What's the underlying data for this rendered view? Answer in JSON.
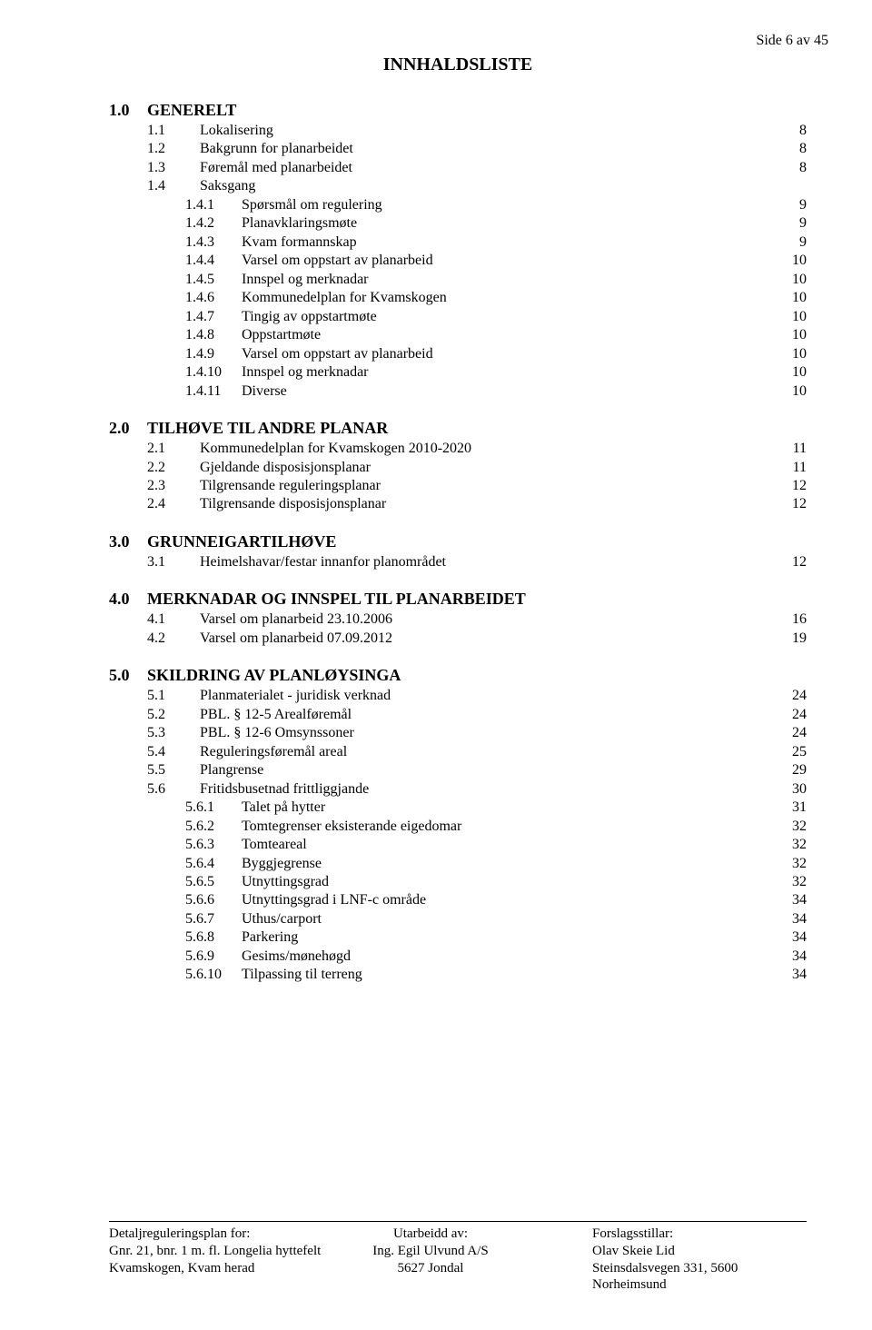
{
  "page_marker": "Side 6 av 45",
  "doc_title": "INNHALDSLISTE",
  "colors": {
    "text": "#000000",
    "background": "#ffffff",
    "rule": "#000000"
  },
  "typography": {
    "family": "Times New Roman",
    "title_size_pt": 15,
    "section_size_pt": 13,
    "body_size_pt": 12,
    "footer_size_pt": 11
  },
  "sections": [
    {
      "num": "1.0",
      "title": "GENERELT",
      "entries": [
        {
          "level": 1,
          "num": "1.1",
          "label": "Lokalisering",
          "page": "8"
        },
        {
          "level": 1,
          "num": "1.2",
          "label": "Bakgrunn for planarbeidet",
          "page": "8"
        },
        {
          "level": 1,
          "num": "1.3",
          "label": "Føremål med planarbeidet",
          "page": "8"
        },
        {
          "level": 1,
          "num": "1.4",
          "label": "Saksgang",
          "page": ""
        },
        {
          "level": 2,
          "num": "1.4.1",
          "label": "Spørsmål om regulering",
          "page": "9"
        },
        {
          "level": 2,
          "num": "1.4.2",
          "label": "Planavklaringsmøte",
          "page": "9"
        },
        {
          "level": 2,
          "num": "1.4.3",
          "label": "Kvam formannskap",
          "page": "9"
        },
        {
          "level": 2,
          "num": "1.4.4",
          "label": "Varsel om oppstart av planarbeid",
          "page": "10"
        },
        {
          "level": 2,
          "num": "1.4.5",
          "label": "Innspel og merknadar",
          "page": "10"
        },
        {
          "level": 2,
          "num": "1.4.6",
          "label": "Kommunedelplan for Kvamskogen",
          "page": "10"
        },
        {
          "level": 2,
          "num": "1.4.7",
          "label": "Tingig av oppstartmøte",
          "page": "10"
        },
        {
          "level": 2,
          "num": "1.4.8",
          "label": "Oppstartmøte",
          "page": "10"
        },
        {
          "level": 2,
          "num": "1.4.9",
          "label": "Varsel om oppstart av planarbeid",
          "page": "10"
        },
        {
          "level": 2,
          "num": "1.4.10",
          "label": "Innspel og merknadar",
          "page": "10"
        },
        {
          "level": 2,
          "num": "1.4.11",
          "label": "Diverse",
          "page": "10"
        }
      ]
    },
    {
      "num": "2.0",
      "title": "TILHØVE TIL ANDRE PLANAR",
      "entries": [
        {
          "level": 1,
          "num": "2.1",
          "label": "Kommunedelplan for Kvamskogen 2010-2020",
          "page": "11"
        },
        {
          "level": 1,
          "num": "2.2",
          "label": "Gjeldande disposisjonsplanar",
          "page": "11"
        },
        {
          "level": 1,
          "num": "2.3",
          "label": "Tilgrensande reguleringsplanar",
          "page": "12"
        },
        {
          "level": 1,
          "num": "2.4",
          "label": "Tilgrensande disposisjonsplanar",
          "page": "12"
        }
      ]
    },
    {
      "num": "3.0",
      "title": "GRUNNEIGARTILHØVE",
      "entries": [
        {
          "level": 1,
          "num": "3.1",
          "label": "Heimelshavar/festar innanfor planområdet",
          "page": "12"
        }
      ]
    },
    {
      "num": "4.0",
      "title": "MERKNADAR OG INNSPEL TIL PLANARBEIDET",
      "entries": [
        {
          "level": 1,
          "num": "4.1",
          "label": "Varsel om planarbeid 23.10.2006",
          "page": "16"
        },
        {
          "level": 1,
          "num": "4.2",
          "label": "Varsel om planarbeid 07.09.2012",
          "page": "19"
        }
      ]
    },
    {
      "num": "5.0",
      "title": "SKILDRING AV PLANLØYSINGA",
      "entries": [
        {
          "level": 1,
          "num": "5.1",
          "label": "Planmaterialet - juridisk verknad",
          "page": "24"
        },
        {
          "level": 1,
          "num": "5.2",
          "label": "PBL. § 12-5 Arealføremål",
          "page": "24"
        },
        {
          "level": 1,
          "num": "5.3",
          "label": "PBL. § 12-6 Omsynssoner",
          "page": "24"
        },
        {
          "level": 1,
          "num": "5.4",
          "label": "Reguleringsføremål areal",
          "page": "25"
        },
        {
          "level": 1,
          "num": "5.5",
          "label": "Plangrense",
          "page": "29"
        },
        {
          "level": 1,
          "num": "5.6",
          "label": "Fritidsbusetnad frittliggjande",
          "page": "30"
        },
        {
          "level": 2,
          "num": "5.6.1",
          "label": "Talet på hytter",
          "page": "31"
        },
        {
          "level": 2,
          "num": "5.6.2",
          "label": "Tomtegrenser eksisterande eigedomar",
          "page": "32"
        },
        {
          "level": 2,
          "num": "5.6.3",
          "label": "Tomteareal",
          "page": "32"
        },
        {
          "level": 2,
          "num": "5.6.4",
          "label": "Byggjegrense",
          "page": "32"
        },
        {
          "level": 2,
          "num": "5.6.5",
          "label": "Utnyttingsgrad",
          "page": "32"
        },
        {
          "level": 2,
          "num": "5.6.6",
          "label": "Utnyttingsgrad i LNF-c område",
          "page": "34"
        },
        {
          "level": 2,
          "num": "5.6.7",
          "label": "Uthus/carport",
          "page": "34"
        },
        {
          "level": 2,
          "num": "5.6.8",
          "label": "Parkering",
          "page": "34"
        },
        {
          "level": 2,
          "num": "5.6.9",
          "label": "Gesims/mønehøgd",
          "page": "34"
        },
        {
          "level": 2,
          "num": "5.6.10",
          "label": "Tilpassing til terreng",
          "page": "34"
        }
      ]
    }
  ],
  "footer": {
    "col1": [
      "Detaljreguleringsplan for:",
      "Gnr. 21, bnr. 1 m. fl. Longelia hyttefelt",
      "Kvamskogen, Kvam herad"
    ],
    "col2": [
      "Utarbeidd av:",
      "Ing. Egil Ulvund A/S",
      "5627 Jondal"
    ],
    "col3": [
      "Forslagsstillar:",
      "Olav Skeie Lid",
      "Steinsdalsvegen 331, 5600 Norheimsund"
    ]
  }
}
